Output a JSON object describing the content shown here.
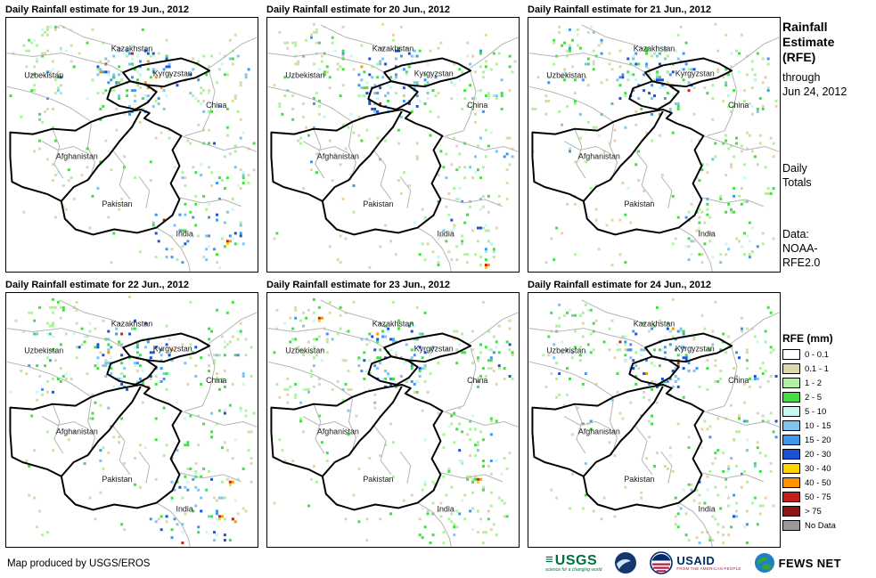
{
  "panels": [
    {
      "title": "Daily Rainfall estimate for 19 Jun., 2012"
    },
    {
      "title": "Daily Rainfall estimate for 20 Jun., 2012"
    },
    {
      "title": "Daily Rainfall estimate for 21 Jun., 2012"
    },
    {
      "title": "Daily Rainfall estimate for 22 Jun., 2012"
    },
    {
      "title": "Daily Rainfall estimate for 23 Jun., 2012"
    },
    {
      "title": "Daily Rainfall estimate for 24 Jun., 2012"
    }
  ],
  "map_labels": {
    "kazakhstan": "Kazakhstan",
    "uzbekistan": "Uzbekistan",
    "kyrgyzstan": "Kyrgyzstan",
    "china": "China",
    "afghanistan": "Afghanistan",
    "pakistan": "Pakistan",
    "india": "India"
  },
  "sidebar": {
    "title_lines": [
      "Rainfall",
      "Estimate",
      "(RFE)"
    ],
    "through_lines": [
      "through",
      "Jun 24, 2012"
    ],
    "totals_lines": [
      "Daily",
      "Totals"
    ],
    "data_lines": [
      "Data:",
      "NOAA-",
      "RFE2.0"
    ]
  },
  "legend": {
    "title": "RFE (mm)",
    "items": [
      {
        "label": "0 - 0.1",
        "color": "#ffffff"
      },
      {
        "label": "0.1 - 1",
        "color": "#ded7ae"
      },
      {
        "label": "1 - 2",
        "color": "#b0f0a0"
      },
      {
        "label": "2 - 5",
        "color": "#44dd44"
      },
      {
        "label": "5 - 10",
        "color": "#c9f7f3"
      },
      {
        "label": "10 - 15",
        "color": "#7fc4ee"
      },
      {
        "label": "15 - 20",
        "color": "#3e97e8"
      },
      {
        "label": "20 - 30",
        "color": "#1a52d6"
      },
      {
        "label": "30 - 40",
        "color": "#ffd400"
      },
      {
        "label": "40 - 50",
        "color": "#ff9200"
      },
      {
        "label": "50 - 75",
        "color": "#c41f1f"
      },
      {
        "label": "> 75",
        "color": "#8c1616"
      },
      {
        "label": "No Data",
        "color": "#9a9a9a"
      }
    ]
  },
  "footer": {
    "credit": "Map produced by USGS/EROS",
    "usgs": {
      "name": "USGS",
      "tagline": "science for a changing world"
    },
    "usaid": {
      "name": "USAID",
      "tagline": "FROM THE AMERICAN PEOPLE"
    },
    "fewsnet": {
      "name": "FEWS NET"
    }
  }
}
